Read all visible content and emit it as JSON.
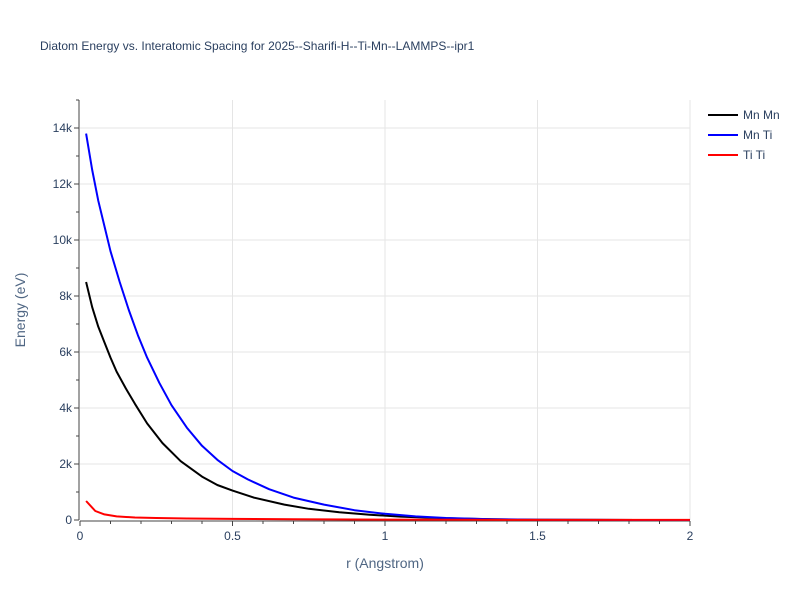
{
  "chart_data": {
    "type": "line",
    "title": "Diatom Energy vs. Interatomic Spacing for 2025--Sharifi-H--Ti-Mn--LAMMPS--ipr1",
    "xlabel": "r (Angstrom)",
    "ylabel": "Energy (eV)",
    "xlim": [
      0,
      2
    ],
    "ylim": [
      0,
      15000
    ],
    "x_ticks": [
      0,
      0.5,
      1,
      1.5,
      2
    ],
    "x_tick_labels": [
      "0",
      "0.5",
      "1",
      "1.5",
      "2"
    ],
    "y_ticks": [
      0,
      2000,
      4000,
      6000,
      8000,
      10000,
      12000,
      14000
    ],
    "y_tick_labels": [
      "0",
      "2k",
      "4k",
      "6k",
      "8k",
      "10k",
      "12k",
      "14k"
    ],
    "grid": true,
    "legend_position": "top-right",
    "series": [
      {
        "name": "Mn Mn",
        "color": "#000000",
        "points": [
          [
            0.02,
            8500
          ],
          [
            0.04,
            7600
          ],
          [
            0.06,
            6900
          ],
          [
            0.08,
            6350
          ],
          [
            0.1,
            5800
          ],
          [
            0.12,
            5300
          ],
          [
            0.15,
            4700
          ],
          [
            0.18,
            4150
          ],
          [
            0.22,
            3450
          ],
          [
            0.27,
            2750
          ],
          [
            0.33,
            2100
          ],
          [
            0.4,
            1550
          ],
          [
            0.45,
            1250
          ],
          [
            0.5,
            1050
          ],
          [
            0.57,
            800
          ],
          [
            0.67,
            550
          ],
          [
            0.75,
            400
          ],
          [
            0.85,
            280
          ],
          [
            0.95,
            190
          ],
          [
            1.05,
            120
          ],
          [
            1.2,
            60
          ],
          [
            1.35,
            25
          ],
          [
            1.5,
            10
          ],
          [
            1.7,
            4
          ],
          [
            2.0,
            0
          ]
        ]
      },
      {
        "name": "Mn Ti",
        "color": "#0000ff",
        "points": [
          [
            0.02,
            13800
          ],
          [
            0.04,
            12500
          ],
          [
            0.06,
            11400
          ],
          [
            0.08,
            10500
          ],
          [
            0.1,
            9600
          ],
          [
            0.13,
            8500
          ],
          [
            0.16,
            7500
          ],
          [
            0.19,
            6600
          ],
          [
            0.22,
            5800
          ],
          [
            0.26,
            4900
          ],
          [
            0.3,
            4100
          ],
          [
            0.35,
            3300
          ],
          [
            0.4,
            2650
          ],
          [
            0.45,
            2150
          ],
          [
            0.5,
            1750
          ],
          [
            0.55,
            1450
          ],
          [
            0.62,
            1100
          ],
          [
            0.7,
            800
          ],
          [
            0.8,
            550
          ],
          [
            0.9,
            350
          ],
          [
            1.0,
            220
          ],
          [
            1.1,
            130
          ],
          [
            1.2,
            70
          ],
          [
            1.35,
            30
          ],
          [
            1.5,
            12
          ],
          [
            1.7,
            5
          ],
          [
            2.0,
            0
          ]
        ]
      },
      {
        "name": "Ti Ti",
        "color": "#ff0000",
        "points": [
          [
            0.02,
            680
          ],
          [
            0.05,
            320
          ],
          [
            0.08,
            200
          ],
          [
            0.12,
            130
          ],
          [
            0.18,
            90
          ],
          [
            0.25,
            70
          ],
          [
            0.35,
            55
          ],
          [
            0.5,
            40
          ],
          [
            0.7,
            30
          ],
          [
            1.0,
            15
          ],
          [
            1.3,
            8
          ],
          [
            1.6,
            4
          ],
          [
            2.0,
            2
          ]
        ]
      }
    ]
  }
}
